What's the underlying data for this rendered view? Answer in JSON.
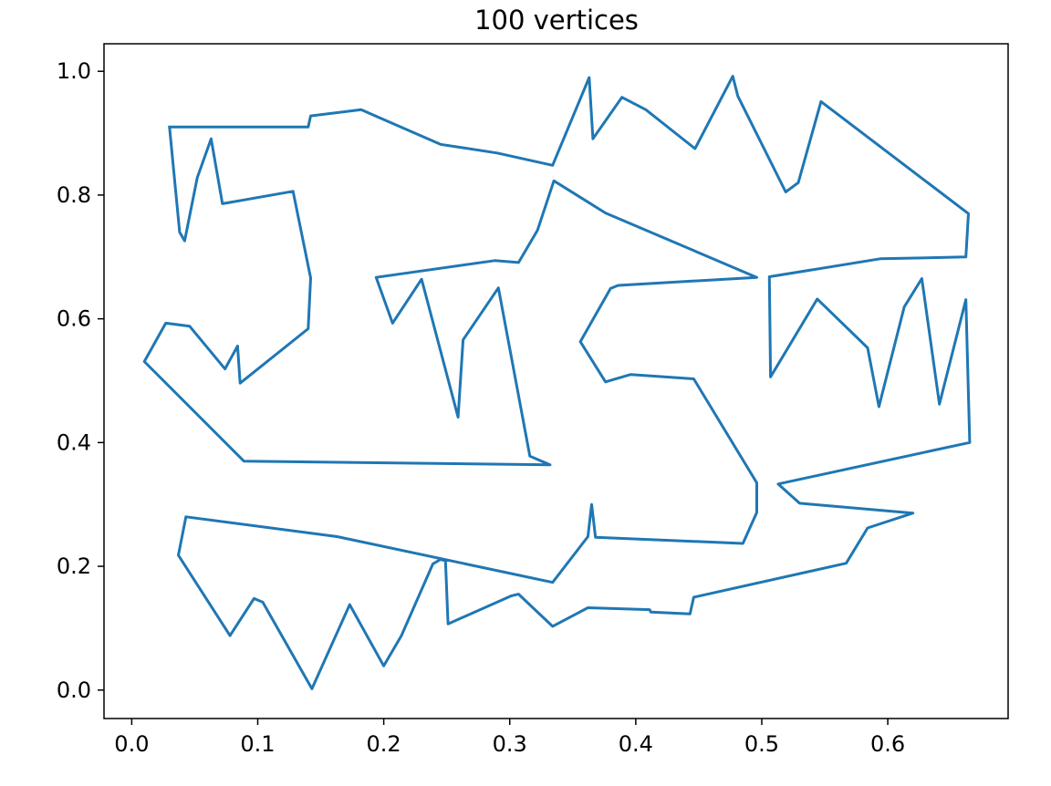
{
  "chart_data": {
    "type": "line",
    "title": "100 vertices",
    "xlabel": "",
    "ylabel": "",
    "xlim": [
      -0.022,
      0.6955
    ],
    "ylim": [
      -0.046,
      1.0445
    ],
    "xticks": [
      0.0,
      0.1,
      0.2,
      0.3,
      0.4,
      0.5,
      0.6
    ],
    "xtick_labels": [
      "0.0",
      "0.1",
      "0.2",
      "0.3",
      "0.4",
      "0.5",
      "0.6"
    ],
    "yticks": [
      0.0,
      0.2,
      0.4,
      0.6,
      0.8,
      1.0
    ],
    "ytick_labels": [
      "0.0",
      "0.2",
      "0.4",
      "0.6",
      "0.8",
      "1.0"
    ],
    "grid": false,
    "line_color": "#1f77b4",
    "series": [
      {
        "x": [
          0.03,
          0.14,
          0.142,
          0.182,
          0.245,
          0.29,
          0.334,
          0.363,
          0.366,
          0.389,
          0.408,
          0.447,
          0.477,
          0.481,
          0.519,
          0.529,
          0.547,
          0.664,
          0.662,
          0.594,
          0.506,
          0.507,
          0.544,
          0.584,
          0.593,
          0.613,
          0.627,
          0.641,
          0.662,
          0.665,
          0.513,
          0.53,
          0.62,
          0.584,
          0.567,
          0.446,
          0.443,
          0.412,
          0.411,
          0.362,
          0.334,
          0.307,
          0.301,
          0.251,
          0.249,
          0.245,
          0.239,
          0.214,
          0.2,
          0.173,
          0.143,
          0.104,
          0.097,
          0.078,
          0.037,
          0.043,
          0.163,
          0.334,
          0.362,
          0.365,
          0.368,
          0.485,
          0.496,
          0.496,
          0.446,
          0.396,
          0.376,
          0.356,
          0.38,
          0.386,
          0.496,
          0.376,
          0.335,
          0.322,
          0.307,
          0.288,
          0.194,
          0.207,
          0.23,
          0.259,
          0.263,
          0.291,
          0.316,
          0.332,
          0.089,
          0.01,
          0.027,
          0.046,
          0.074,
          0.084,
          0.086,
          0.14,
          0.142,
          0.128,
          0.072,
          0.063,
          0.052,
          0.042,
          0.038,
          0.03
        ],
        "y": [
          0.91,
          0.91,
          0.928,
          0.938,
          0.882,
          0.868,
          0.848,
          0.99,
          0.891,
          0.958,
          0.938,
          0.875,
          0.992,
          0.96,
          0.805,
          0.82,
          0.951,
          0.77,
          0.7,
          0.697,
          0.668,
          0.506,
          0.632,
          0.553,
          0.458,
          0.619,
          0.665,
          0.462,
          0.631,
          0.4,
          0.333,
          0.302,
          0.286,
          0.262,
          0.205,
          0.15,
          0.123,
          0.126,
          0.13,
          0.133,
          0.103,
          0.155,
          0.152,
          0.107,
          0.209,
          0.211,
          0.204,
          0.088,
          0.039,
          0.138,
          0.002,
          0.142,
          0.148,
          0.088,
          0.218,
          0.28,
          0.248,
          0.174,
          0.248,
          0.3,
          0.247,
          0.237,
          0.287,
          0.335,
          0.503,
          0.51,
          0.498,
          0.563,
          0.649,
          0.654,
          0.667,
          0.771,
          0.823,
          0.743,
          0.691,
          0.694,
          0.667,
          0.593,
          0.664,
          0.441,
          0.566,
          0.65,
          0.378,
          0.364,
          0.37,
          0.531,
          0.593,
          0.588,
          0.519,
          0.556,
          0.496,
          0.584,
          0.666,
          0.806,
          0.786,
          0.891,
          0.828,
          0.726,
          0.74,
          0.91
        ]
      }
    ]
  }
}
